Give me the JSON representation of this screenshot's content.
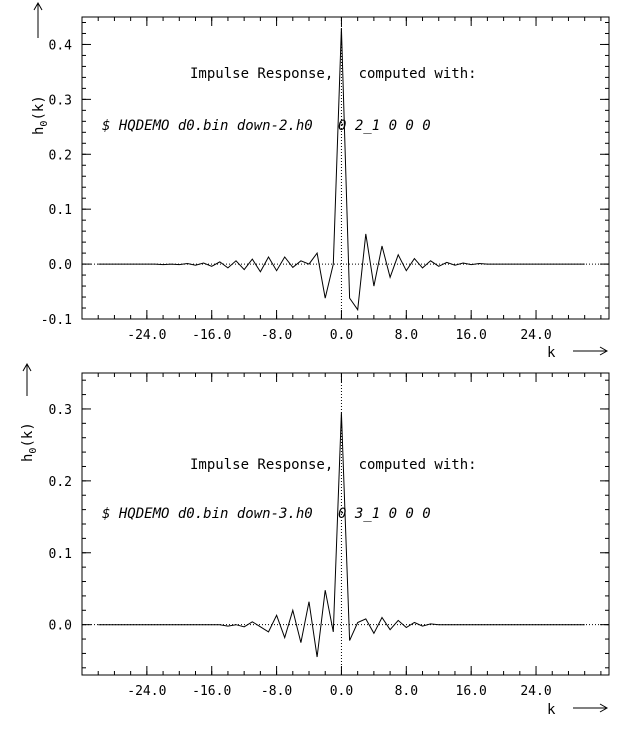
{
  "chart_data": [
    {
      "type": "line",
      "ylabel": "h0(k)",
      "ylabel_base": "h",
      "ylabel_sub": "0",
      "ylabel_arg": "(k)",
      "xlabel": "k",
      "xlim": [
        -32,
        33
      ],
      "ylim": [
        -0.1,
        0.45
      ],
      "xticks": [
        -24,
        -16,
        -8,
        0,
        8,
        16,
        24
      ],
      "xtick_labels": [
        "-24.0",
        "-16.0",
        "-8.0",
        "0.0",
        "8.0",
        "16.0",
        "24.0"
      ],
      "yticks": [
        -0.1,
        0.0,
        0.1,
        0.2,
        0.3,
        0.4
      ],
      "ytick_labels": [
        "-0.1",
        "0.0",
        "0.1",
        "0.2",
        "0.3",
        "0.4"
      ],
      "annotation_title": "Impulse Response,   computed with:",
      "annotation_command": "$ HQDEMO d0.bin down-2.h0   0 2_1 0 0 0",
      "series": [
        {
          "x": [
            -30,
            -29,
            -28,
            -27,
            -26,
            -25,
            -24,
            -23,
            -22,
            -21,
            -20,
            -19,
            -18,
            -17,
            -16,
            -15,
            -14,
            -13,
            -12,
            -11,
            -10,
            -9,
            -8,
            -7,
            -6,
            -5,
            -4,
            -3,
            -2,
            -1,
            0,
            1,
            2,
            3,
            4,
            5,
            6,
            7,
            8,
            9,
            10,
            11,
            12,
            13,
            14,
            15,
            16,
            17,
            18,
            19,
            20,
            21,
            22,
            23,
            24,
            25,
            26,
            27,
            28,
            29,
            30
          ],
          "y": [
            0.0,
            0.0,
            0.0,
            0.0,
            0.0,
            0.0,
            0.0,
            0.0,
            -0.001,
            0.0,
            -0.001,
            0.001,
            -0.002,
            0.002,
            -0.004,
            0.004,
            -0.007,
            0.006,
            -0.01,
            0.009,
            -0.014,
            0.013,
            -0.012,
            0.013,
            -0.006,
            0.006,
            0.0,
            0.02,
            -0.062,
            0.0,
            0.43,
            -0.062,
            -0.083,
            0.055,
            -0.04,
            0.033,
            -0.024,
            0.017,
            -0.012,
            0.01,
            -0.007,
            0.006,
            -0.004,
            0.003,
            -0.002,
            0.002,
            -0.001,
            0.001,
            0.0,
            0.0,
            0.0,
            0.0,
            0.0,
            0.0,
            0.0,
            0.0,
            0.0,
            0.0,
            0.0,
            0.0,
            0.0
          ]
        }
      ]
    },
    {
      "type": "line",
      "ylabel": "h0(k)",
      "ylabel_base": "h",
      "ylabel_sub": "0",
      "ylabel_arg": "(k)",
      "xlabel": "k",
      "xlim": [
        -32,
        33
      ],
      "ylim": [
        -0.07,
        0.35
      ],
      "xticks": [
        -24,
        -16,
        -8,
        0,
        8,
        16,
        24
      ],
      "xtick_labels": [
        "-24.0",
        "-16.0",
        "-8.0",
        "0.0",
        "8.0",
        "16.0",
        "24.0"
      ],
      "yticks": [
        0.0,
        0.1,
        0.2,
        0.3
      ],
      "ytick_labels": [
        "0.0",
        "0.1",
        "0.2",
        "0.3"
      ],
      "annotation_title": "Impulse Response,   computed with:",
      "annotation_command": "$ HQDEMO d0.bin down-3.h0   0 3_1 0 0 0",
      "series": [
        {
          "x": [
            -30,
            -29,
            -28,
            -27,
            -26,
            -25,
            -24,
            -23,
            -22,
            -21,
            -20,
            -19,
            -18,
            -17,
            -16,
            -15,
            -14,
            -13,
            -12,
            -11,
            -10,
            -9,
            -8,
            -7,
            -6,
            -5,
            -4,
            -3,
            -2,
            -1,
            0,
            1,
            2,
            3,
            4,
            5,
            6,
            7,
            8,
            9,
            10,
            11,
            12,
            13,
            14,
            15,
            16,
            17,
            18,
            19,
            20,
            21,
            22,
            23,
            24,
            25,
            26,
            27,
            28,
            29,
            30
          ],
          "y": [
            0.0,
            0.0,
            0.0,
            0.0,
            0.0,
            0.0,
            0.0,
            0.0,
            0.0,
            0.0,
            0.0,
            0.0,
            0.0,
            0.0,
            0.0,
            0.0,
            -0.002,
            0.0,
            -0.003,
            0.004,
            -0.003,
            -0.01,
            0.013,
            -0.018,
            0.02,
            -0.025,
            0.032,
            -0.045,
            0.048,
            -0.01,
            0.295,
            -0.022,
            0.003,
            0.008,
            -0.012,
            0.01,
            -0.007,
            0.006,
            -0.004,
            0.003,
            -0.002,
            0.001,
            0.0,
            0.0,
            0.0,
            0.0,
            0.0,
            0.0,
            0.0,
            0.0,
            0.0,
            0.0,
            0.0,
            0.0,
            0.0,
            0.0,
            0.0,
            0.0,
            0.0,
            0.0,
            0.0
          ]
        }
      ]
    }
  ]
}
